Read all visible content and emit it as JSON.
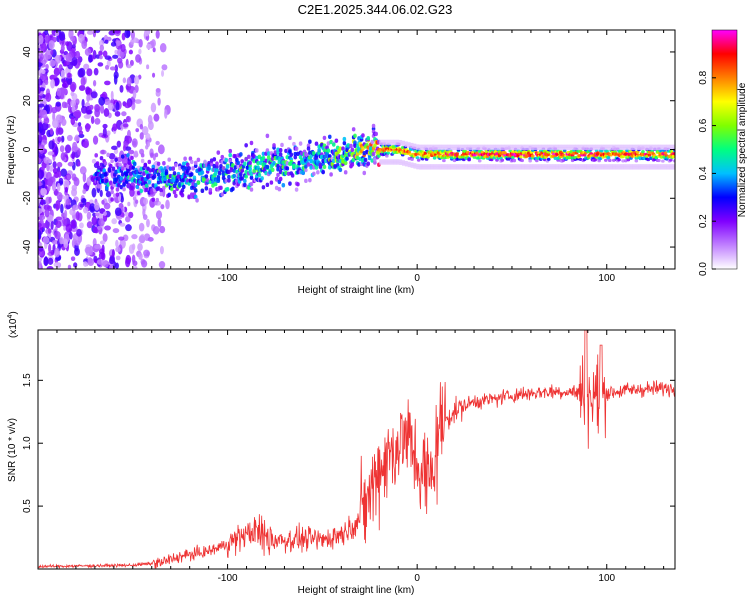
{
  "title": "C2E1.2025.344.06.02.G23",
  "chart_data": [
    {
      "type": "heatmap",
      "name": "spectrogram",
      "xlabel": "Height of straight line (km)",
      "ylabel": "Frequency (Hz)",
      "xlim": [
        -200,
        136
      ],
      "ylim": [
        -49,
        49
      ],
      "xticks": [
        -100,
        0,
        100
      ],
      "xtick_labels": [
        "-100",
        "0",
        "100"
      ],
      "yticks": [
        -40,
        -20,
        0,
        20,
        40
      ],
      "ytick_labels": [
        "-40",
        "-20",
        "0",
        "20",
        "40"
      ],
      "ridge": {
        "x": [
          -170,
          -150,
          -130,
          -110,
          -90,
          -70,
          -55,
          -40,
          -30,
          -25,
          -20,
          -10,
          0,
          10,
          40,
          80,
          100,
          136
        ],
        "frequency": [
          -11,
          -11,
          -12,
          -11,
          -8,
          -6,
          -4,
          -2,
          0,
          2,
          0,
          0,
          -2,
          -2,
          -2,
          -2,
          -2,
          -2
        ],
        "peak_amplitude": [
          0.35,
          0.4,
          0.45,
          0.45,
          0.5,
          0.5,
          0.5,
          0.55,
          0.6,
          0.8,
          0.9,
          0.85,
          0.85,
          0.9,
          0.95,
          0.95,
          0.9,
          0.9
        ]
      },
      "colorbar": {
        "label": "Normalized spectral amplitude",
        "range": [
          0,
          1
        ],
        "ticks": [
          0.0,
          0.2,
          0.4,
          0.6,
          0.8
        ],
        "tick_labels": [
          "0.0",
          "0.2",
          "0.4",
          "0.6",
          "0.8"
        ],
        "colors": [
          "#ffffff",
          "#c080ff",
          "#8000ff",
          "#0000ff",
          "#00c0ff",
          "#00ff80",
          "#80ff00",
          "#ffff00",
          "#ff8000",
          "#ff0000",
          "#ff00ff"
        ]
      }
    },
    {
      "type": "line",
      "name": "snr",
      "xlabel": "Height of straight line (km)",
      "ylabel": "SNR (10 * v/v)",
      "scale_label": "(x10",
      "scale_exponent": "4",
      "xlim": [
        -200,
        136
      ],
      "ylim": [
        0,
        1.9
      ],
      "xticks": [
        -100,
        0,
        100
      ],
      "xtick_labels": [
        "-100",
        "0",
        "100"
      ],
      "yticks": [
        0.5,
        1.0,
        1.5
      ],
      "ytick_labels": [
        "0.5",
        "1.0",
        "1.5"
      ],
      "color": "#ee3333",
      "series": [
        {
          "name": "SNR envelope",
          "x": [
            -200,
            -150,
            -135,
            -125,
            -110,
            -100,
            -90,
            -85,
            -80,
            -70,
            -60,
            -50,
            -40,
            -35,
            -30,
            -25,
            -20,
            -15,
            -10,
            -5,
            0,
            5,
            8,
            10,
            12,
            15,
            20,
            25,
            30,
            40,
            50,
            60,
            70,
            80,
            88,
            92,
            96,
            100,
            110,
            120,
            136
          ],
          "y": [
            0.02,
            0.03,
            0.05,
            0.1,
            0.14,
            0.2,
            0.28,
            0.3,
            0.25,
            0.23,
            0.24,
            0.23,
            0.28,
            0.33,
            0.4,
            0.6,
            0.8,
            0.9,
            1.0,
            1.05,
            0.85,
            0.7,
            0.75,
            1.0,
            1.1,
            1.2,
            1.25,
            1.3,
            1.33,
            1.35,
            1.38,
            1.4,
            1.41,
            1.41,
            1.4,
            1.35,
            1.38,
            1.4,
            1.42,
            1.43,
            1.44
          ]
        }
      ]
    }
  ]
}
